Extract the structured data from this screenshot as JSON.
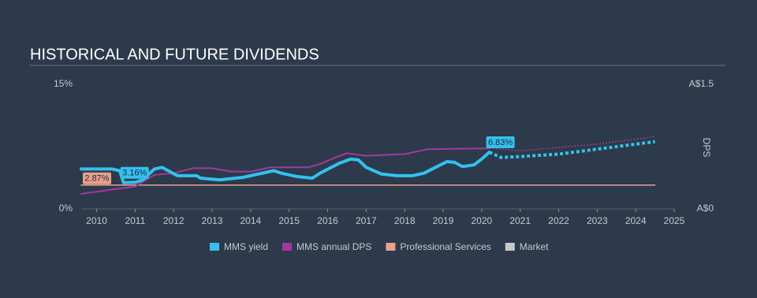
{
  "chart_data": {
    "type": "line",
    "title": "HISTORICAL AND FUTURE DIVIDENDS",
    "xlim": [
      2009.6,
      2025
    ],
    "xticks": [
      2010,
      2011,
      2012,
      2013,
      2014,
      2015,
      2016,
      2017,
      2018,
      2019,
      2020,
      2021,
      2022,
      2023,
      2024,
      2025
    ],
    "ylim": [
      0,
      15
    ],
    "yticks": [
      {
        "value": 0,
        "label": "0%"
      },
      {
        "value": 15,
        "label": "15%"
      }
    ],
    "y2lim": [
      0,
      1.5
    ],
    "y2ticks": [
      {
        "value": 0,
        "label": "A$0"
      },
      {
        "value": 1.5,
        "label": "A$1.5"
      }
    ],
    "y2label": "DPS",
    "series": [
      {
        "name": "MMS yield",
        "color": "#35c0ef",
        "x": [
          2009.6,
          2010.4,
          2010.6,
          2010.7,
          2011.0,
          2011.2,
          2011.5,
          2011.7,
          2011.9,
          2012.1,
          2012.6,
          2012.7,
          2013.2,
          2013.8,
          2014.3,
          2014.6,
          2014.8,
          2015.2,
          2015.6,
          2015.8,
          2016.3,
          2016.6,
          2016.8,
          2017.0,
          2017.4,
          2017.8,
          2018.2,
          2018.5,
          2018.8,
          2019.1,
          2019.3,
          2019.5,
          2019.8,
          2020.0,
          2020.2
        ],
        "values": [
          4.8,
          4.8,
          4.6,
          3.16,
          3.2,
          3.5,
          4.8,
          5.0,
          4.5,
          4.0,
          4.0,
          3.7,
          3.5,
          3.8,
          4.3,
          4.6,
          4.3,
          3.9,
          3.7,
          4.3,
          5.5,
          6.0,
          5.9,
          5.0,
          4.2,
          4.0,
          4.0,
          4.3,
          5.0,
          5.7,
          5.6,
          5.1,
          5.3,
          6.0,
          6.83
        ],
        "forecast_x": [
          2020.2,
          2020.5,
          2021,
          2022,
          2023,
          2024.5
        ],
        "forecast_values": [
          6.83,
          6.2,
          6.3,
          6.6,
          7.2,
          8.1
        ]
      },
      {
        "name": "MMS annual DPS",
        "color": "#a3399c",
        "axis": "y2",
        "x": [
          2009.6,
          2010.5,
          2011.0,
          2011.5,
          2012.0,
          2012.5,
          2013.0,
          2013.5,
          2014.0,
          2014.5,
          2015.5,
          2015.8,
          2016.2,
          2016.5,
          2017.0,
          2018.0,
          2018.6,
          2020.2
        ],
        "values": [
          0.18,
          0.24,
          0.27,
          0.41,
          0.43,
          0.49,
          0.49,
          0.45,
          0.45,
          0.5,
          0.5,
          0.54,
          0.62,
          0.67,
          0.64,
          0.66,
          0.72,
          0.73
        ],
        "forecast_x": [
          2020.2,
          2021,
          2022,
          2023,
          2024.5
        ],
        "forecast_values": [
          0.73,
          0.7,
          0.74,
          0.78,
          0.87
        ]
      },
      {
        "name": "Professional Services",
        "color": "#e8a08c",
        "x": [
          2009.6,
          2024.5
        ],
        "values": [
          2.87,
          2.87
        ]
      },
      {
        "name": "Market",
        "color": "#c8c8c8",
        "x": [],
        "values": []
      }
    ],
    "annotations": [
      {
        "text": "3.16%",
        "x": 2010.7,
        "value": 3.16,
        "series": 0
      },
      {
        "text": "6.83%",
        "x": 2020.2,
        "value": 6.83,
        "series": 0
      },
      {
        "text": "2.87%",
        "x": 2009.6,
        "value": 2.87,
        "series": 2
      }
    ]
  }
}
